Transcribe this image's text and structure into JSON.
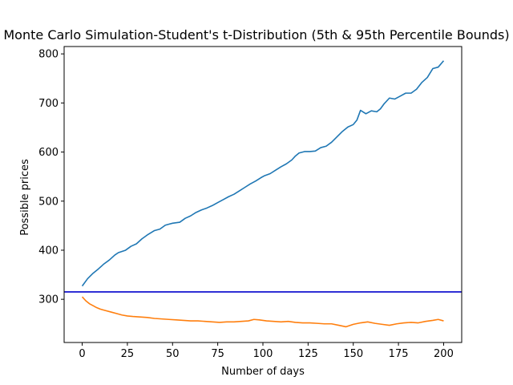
{
  "chart_data": {
    "type": "line",
    "title": "Monte Carlo Simulation-Student's t-Distribution (5th & 95th Percentile Bounds)",
    "xlabel": "Number of days",
    "ylabel": "Possible prices",
    "xlim": [
      -10,
      210
    ],
    "ylim": [
      212,
      815
    ],
    "xticks": [
      0,
      25,
      50,
      75,
      100,
      125,
      150,
      175,
      200
    ],
    "yticks": [
      300,
      400,
      500,
      600,
      700,
      800
    ],
    "grid": false,
    "legend": "none",
    "reference_line": {
      "y": 315,
      "color": "#0000cc"
    },
    "series": [
      {
        "color": "#1f77b4",
        "x": [
          0,
          3,
          6,
          9,
          12,
          15,
          18,
          20,
          24,
          27,
          30,
          33,
          36,
          40,
          43,
          46,
          48,
          50,
          54,
          57,
          60,
          63,
          66,
          69,
          72,
          75,
          78,
          81,
          84,
          87,
          90,
          93,
          96,
          99,
          101,
          104,
          107,
          110,
          113,
          116,
          118,
          120,
          123,
          126,
          129,
          132,
          135,
          138,
          141,
          144,
          147,
          150,
          152,
          154,
          157,
          160,
          163,
          165,
          167,
          170,
          173,
          176,
          179,
          182,
          185,
          188,
          191,
          194,
          197,
          200
        ],
        "y": [
          327,
          342,
          353,
          362,
          372,
          380,
          390,
          395,
          400,
          408,
          413,
          423,
          431,
          440,
          443,
          451,
          453,
          455,
          457,
          465,
          470,
          477,
          482,
          486,
          491,
          497,
          503,
          509,
          514,
          521,
          528,
          535,
          541,
          548,
          552,
          556,
          563,
          570,
          576,
          584,
          592,
          598,
          601,
          601,
          602,
          609,
          612,
          620,
          631,
          642,
          651,
          656,
          665,
          685,
          678,
          684,
          682,
          688,
          698,
          710,
          708,
          714,
          720,
          720,
          728,
          742,
          752,
          770,
          773,
          786
        ]
      },
      {
        "color": "#ff7f0e",
        "x": [
          0,
          2,
          4,
          6,
          8,
          10,
          13,
          16,
          19,
          22,
          25,
          28,
          32,
          36,
          40,
          44,
          48,
          52,
          56,
          60,
          64,
          68,
          72,
          76,
          80,
          84,
          88,
          92,
          95,
          98,
          102,
          106,
          110,
          114,
          118,
          122,
          126,
          130,
          134,
          138,
          142,
          146,
          150,
          154,
          158,
          162,
          166,
          170,
          174,
          178,
          182,
          186,
          190,
          194,
          197,
          200
        ],
        "y": [
          305,
          297,
          291,
          287,
          283,
          280,
          277,
          274,
          271,
          268,
          266,
          265,
          264,
          263,
          261,
          260,
          259,
          258,
          257,
          256,
          256,
          255,
          254,
          253,
          254,
          254,
          255,
          256,
          259,
          258,
          256,
          255,
          254,
          255,
          253,
          252,
          252,
          251,
          250,
          250,
          247,
          244,
          249,
          252,
          254,
          251,
          249,
          247,
          250,
          252,
          253,
          252,
          255,
          257,
          259,
          256
        ]
      }
    ]
  }
}
